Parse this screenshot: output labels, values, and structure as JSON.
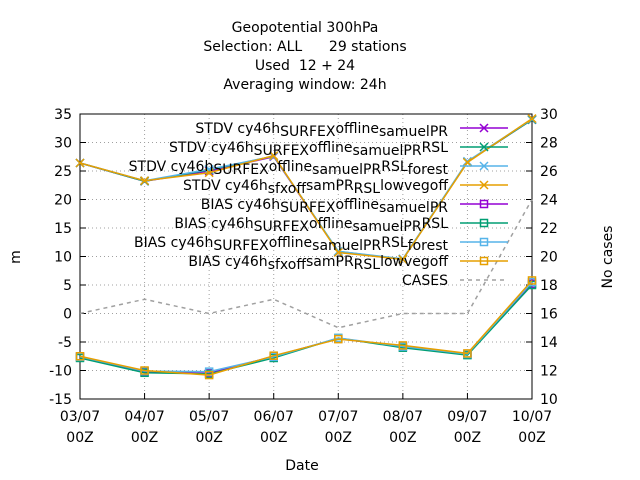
{
  "chart_data": {
    "type": "line",
    "title_lines": [
      "Geopotential 300hPa",
      "Selection: ALL      29 stations",
      "Used  12 + 24",
      "Averaging window: 24h"
    ],
    "xlabel": "Date",
    "ylabel": "m",
    "y2label": "No cases",
    "categories": [
      "03/07\n00Z",
      "04/07\n00Z",
      "05/07\n00Z",
      "06/07\n00Z",
      "07/07\n00Z",
      "08/07\n00Z",
      "09/07\n00Z",
      "10/07\n00Z"
    ],
    "ylim": [
      -15,
      35
    ],
    "yticks": [
      -15,
      -10,
      -5,
      0,
      5,
      10,
      15,
      20,
      25,
      30,
      35
    ],
    "y2lim": [
      10,
      30
    ],
    "y2ticks": [
      10,
      12,
      14,
      16,
      18,
      20,
      22,
      24,
      26,
      28,
      30
    ],
    "grid": true,
    "legend_position": "top-right",
    "series": [
      {
        "name": "STDV cy46h_SURFEX_offline_samuelPR",
        "axis": "y",
        "marker": "x",
        "color": "#9400d3",
        "values": [
          26.4,
          23.2,
          25.0,
          27.5,
          10.8,
          9.5,
          26.6,
          34.0
        ]
      },
      {
        "name": "STDV cy46h_SURFEX_offline_samuelPR_RSL",
        "axis": "y",
        "marker": "x",
        "color": "#009e73",
        "values": [
          26.4,
          23.2,
          25.2,
          27.6,
          10.9,
          9.5,
          26.6,
          34.0
        ]
      },
      {
        "name": "STDV cy46h_SURFEX_offline_samuelPR_RSL_forest",
        "axis": "y",
        "marker": "x",
        "color": "#56b4e9",
        "values": [
          26.4,
          23.3,
          25.3,
          27.6,
          10.9,
          9.6,
          26.7,
          34.1
        ]
      },
      {
        "name": "STDV cy46h_sfxoff_samPR_RSL_lowvegoff",
        "axis": "y",
        "marker": "x",
        "color": "#e69f00",
        "values": [
          26.4,
          23.3,
          24.7,
          27.7,
          10.7,
          9.5,
          26.5,
          34.2
        ]
      },
      {
        "name": "BIAS cy46h_SURFEX_offline_samuelPR",
        "axis": "y",
        "marker": "square",
        "color": "#9400d3",
        "values": [
          -7.6,
          -10.2,
          -10.5,
          -7.5,
          -4.4,
          -5.8,
          -7.2,
          5.2
        ]
      },
      {
        "name": "BIAS cy46h_SURFEX_offline_samuelPR_RSL",
        "axis": "y",
        "marker": "square",
        "color": "#009e73",
        "values": [
          -7.8,
          -10.4,
          -10.6,
          -7.8,
          -4.3,
          -6.0,
          -7.3,
          5.0
        ]
      },
      {
        "name": "BIAS cy46h_SURFEX_offline_samuelPR_RSL_forest",
        "axis": "y",
        "marker": "square",
        "color": "#56b4e9",
        "values": [
          -7.6,
          -10.1,
          -10.2,
          -7.6,
          -4.3,
          -5.8,
          -7.1,
          5.5
        ]
      },
      {
        "name": "BIAS cy46h_sfxoff_samPR_RSL_lowvegoff",
        "axis": "y",
        "marker": "square",
        "color": "#e69f00",
        "values": [
          -7.5,
          -10.0,
          -10.8,
          -7.4,
          -4.5,
          -5.6,
          -7.0,
          5.8
        ]
      },
      {
        "name": "CASES",
        "axis": "y2",
        "marker": "none",
        "dashed": true,
        "color": "#a0a0a0",
        "values": [
          16,
          17,
          16,
          17,
          15,
          16,
          16,
          24
        ]
      }
    ]
  }
}
